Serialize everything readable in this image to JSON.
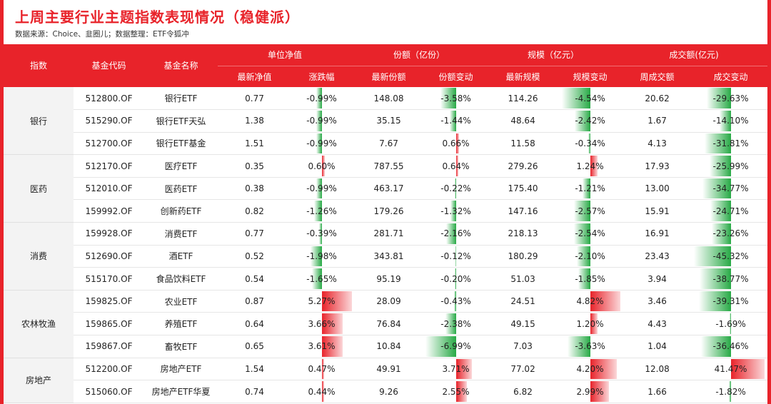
{
  "title": "上周主要行业主题指数表现情况（稳健派）",
  "source": "数据来源：Choice、韭圈儿；数据整理：ETF令狐冲",
  "header": {
    "index": "指数",
    "fund_code": "基金代码",
    "fund_name": "基金名称",
    "nav_group": "单位净值",
    "share_group": "份额（亿份）",
    "scale_group": "规模（亿元）",
    "turnover_group": "成交额(亿元)",
    "nav_latest": "最新净值",
    "nav_change": "涨跌幅",
    "share_latest": "最新份额",
    "share_change": "份额变动",
    "scale_latest": "最新规模",
    "scale_change": "规模变动",
    "turnover_week": "周成交额",
    "turnover_change": "成交变动"
  },
  "colors": {
    "accent": "#e8232a",
    "negative": "#27a945",
    "positive": "#e8232a"
  },
  "groups": [
    {
      "name": "银行",
      "rows": [
        {
          "code": "512800.OF",
          "name": "银行ETF",
          "nav": "0.77",
          "nav_chg": "-0.99%",
          "shares": "148.08",
          "shares_chg": "-3.58%",
          "scale": "114.26",
          "scale_chg": "-4.54%",
          "turnover": "20.62",
          "turnover_chg": "-29.63%"
        },
        {
          "code": "515290.OF",
          "name": "银行ETF天弘",
          "nav": "1.38",
          "nav_chg": "-0.99%",
          "shares": "35.15",
          "shares_chg": "-1.44%",
          "scale": "48.64",
          "scale_chg": "-2.42%",
          "turnover": "1.67",
          "turnover_chg": "-14.10%"
        },
        {
          "code": "512700.OF",
          "name": "银行ETF基金",
          "nav": "1.51",
          "nav_chg": "-0.99%",
          "shares": "7.67",
          "shares_chg": "0.66%",
          "scale": "11.58",
          "scale_chg": "-0.34%",
          "turnover": "4.13",
          "turnover_chg": "-31.81%"
        }
      ]
    },
    {
      "name": "医药",
      "rows": [
        {
          "code": "512170.OF",
          "name": "医疗ETF",
          "nav": "0.35",
          "nav_chg": "0.60%",
          "shares": "787.55",
          "shares_chg": "0.64%",
          "scale": "279.26",
          "scale_chg": "1.24%",
          "turnover": "17.93",
          "turnover_chg": "-25.99%"
        },
        {
          "code": "512010.OF",
          "name": "医药ETF",
          "nav": "0.38",
          "nav_chg": "-0.99%",
          "shares": "463.17",
          "shares_chg": "-0.22%",
          "scale": "175.40",
          "scale_chg": "-1.21%",
          "turnover": "13.00",
          "turnover_chg": "-34.77%"
        },
        {
          "code": "159992.OF",
          "name": "创新药ETF",
          "nav": "0.82",
          "nav_chg": "-1.26%",
          "shares": "179.26",
          "shares_chg": "-1.32%",
          "scale": "147.16",
          "scale_chg": "-2.57%",
          "turnover": "15.91",
          "turnover_chg": "-24.71%"
        }
      ]
    },
    {
      "name": "消费",
      "rows": [
        {
          "code": "159928.OF",
          "name": "消费ETF",
          "nav": "0.77",
          "nav_chg": "-0.39%",
          "shares": "281.71",
          "shares_chg": "-2.16%",
          "scale": "218.13",
          "scale_chg": "-2.54%",
          "turnover": "16.91",
          "turnover_chg": "-23.26%"
        },
        {
          "code": "512690.OF",
          "name": "酒ETF",
          "nav": "0.52",
          "nav_chg": "-1.98%",
          "shares": "343.81",
          "shares_chg": "-0.12%",
          "scale": "180.29",
          "scale_chg": "-2.10%",
          "turnover": "23.43",
          "turnover_chg": "-45.32%"
        },
        {
          "code": "515170.OF",
          "name": "食品饮料ETF",
          "nav": "0.54",
          "nav_chg": "-1.65%",
          "shares": "95.19",
          "shares_chg": "-0.20%",
          "scale": "51.03",
          "scale_chg": "-1.85%",
          "turnover": "3.94",
          "turnover_chg": "-38.77%"
        }
      ]
    },
    {
      "name": "农林牧渔",
      "rows": [
        {
          "code": "159825.OF",
          "name": "农业ETF",
          "nav": "0.87",
          "nav_chg": "5.27%",
          "shares": "28.09",
          "shares_chg": "-0.43%",
          "scale": "24.51",
          "scale_chg": "4.82%",
          "turnover": "3.46",
          "turnover_chg": "-39.31%"
        },
        {
          "code": "159865.OF",
          "name": "养殖ETF",
          "nav": "0.64",
          "nav_chg": "3.66%",
          "shares": "76.84",
          "shares_chg": "-2.38%",
          "scale": "49.15",
          "scale_chg": "1.20%",
          "turnover": "4.43",
          "turnover_chg": "-1.69%"
        },
        {
          "code": "159867.OF",
          "name": "畜牧ETF",
          "nav": "0.65",
          "nav_chg": "3.61%",
          "shares": "10.84",
          "shares_chg": "-6.99%",
          "scale": "7.03",
          "scale_chg": "-3.63%",
          "turnover": "1.04",
          "turnover_chg": "-36.46%"
        }
      ]
    },
    {
      "name": "房地产",
      "rows": [
        {
          "code": "512200.OF",
          "name": "房地产ETF",
          "nav": "1.54",
          "nav_chg": "0.47%",
          "shares": "49.91",
          "shares_chg": "3.71%",
          "scale": "77.02",
          "scale_chg": "4.20%",
          "turnover": "12.08",
          "turnover_chg": "41.47%"
        },
        {
          "code": "515060.OF",
          "name": "房地产ETF华夏",
          "nav": "0.74",
          "nav_chg": "0.44%",
          "shares": "9.26",
          "shares_chg": "2.55%",
          "scale": "6.82",
          "scale_chg": "2.99%",
          "turnover": "1.66",
          "turnover_chg": "-1.82%"
        }
      ]
    }
  ]
}
